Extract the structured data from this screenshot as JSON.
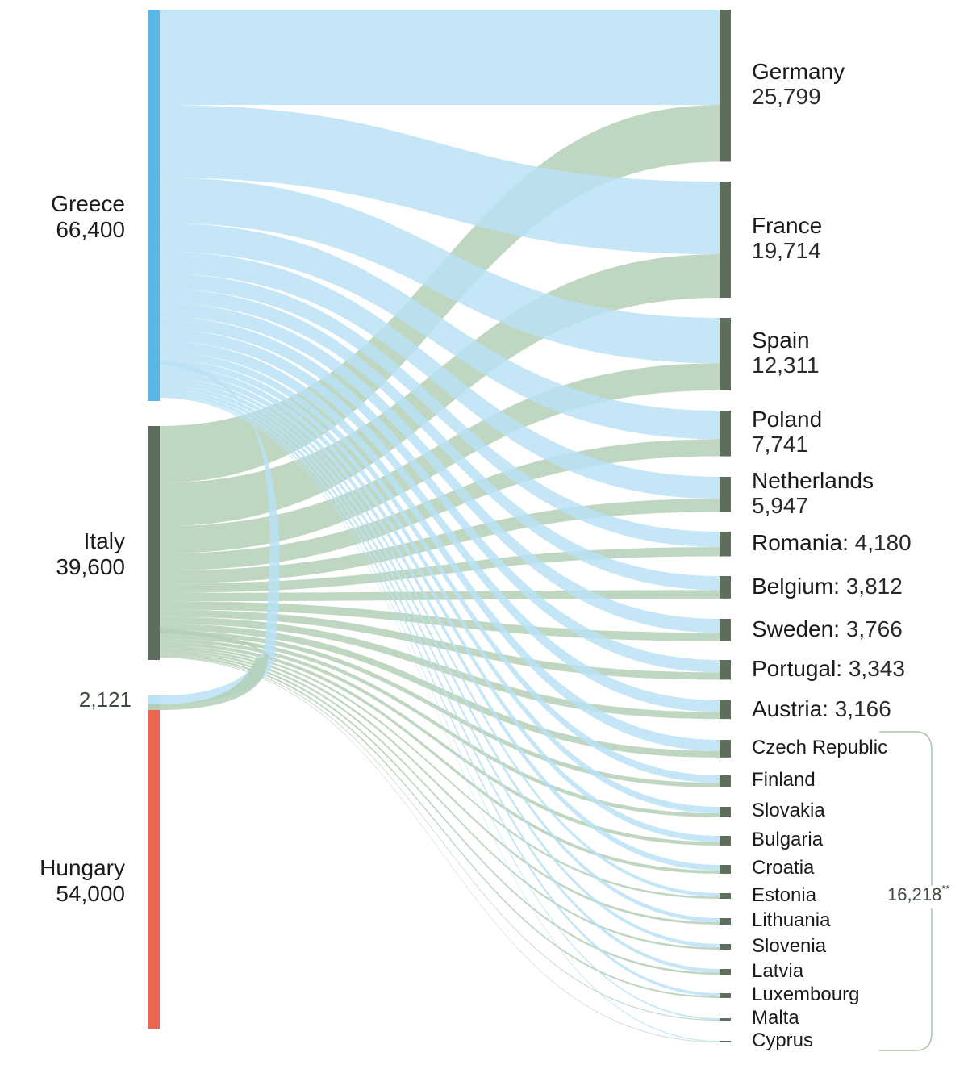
{
  "chart_data": {
    "type": "sankey",
    "title": "",
    "colors": {
      "greece_node": "#57B8E8",
      "italy_node": "#5D6E5D",
      "hungary_node": "#E8674F",
      "target_node": "#5D6E5D",
      "greece_link": "#BAE2F5",
      "italy_link": "#B4CFB6",
      "bracket": "#A9C4AC"
    },
    "sources": [
      {
        "name": "Greece",
        "value": 66400,
        "label": "Greece",
        "value_label": "66,400"
      },
      {
        "name": "Italy",
        "value": 39600,
        "label": "Italy",
        "value_label": "39,600"
      },
      {
        "name": "Hungary",
        "value": 54000,
        "label": "Hungary",
        "value_label": "54,000"
      }
    ],
    "loop": {
      "label": "2,121",
      "value": 2121,
      "note": "flows from Greece and Italy back into the Hungary node",
      "greece_share": 0.6,
      "italy_share": 0.4
    },
    "link_split": {
      "greece_share": 0.626,
      "italy_share": 0.374
    },
    "targets": [
      {
        "name": "Germany",
        "value": 25799,
        "value_label": "25,799",
        "style": "big"
      },
      {
        "name": "France",
        "value": 19714,
        "value_label": "19,714",
        "style": "big"
      },
      {
        "name": "Spain",
        "value": 12311,
        "value_label": "12,311",
        "style": "big"
      },
      {
        "name": "Poland",
        "value": 7741,
        "value_label": "7,741",
        "style": "big"
      },
      {
        "name": "Netherlands",
        "value": 5947,
        "value_label": "5,947",
        "style": "big"
      },
      {
        "name": "Romania",
        "value": 4180,
        "value_label": "4,180",
        "style": "inline"
      },
      {
        "name": "Belgium",
        "value": 3812,
        "value_label": "3,812",
        "style": "inline"
      },
      {
        "name": "Sweden",
        "value": 3766,
        "value_label": "3,766",
        "style": "inline"
      },
      {
        "name": "Portugal",
        "value": 3343,
        "value_label": "3,343",
        "style": "inline"
      },
      {
        "name": "Austria",
        "value": 3166,
        "value_label": "3,166",
        "style": "inline"
      },
      {
        "name": "Czech Republic",
        "value": 3150,
        "estimated": true,
        "style": "small"
      },
      {
        "name": "Finland",
        "value": 2150,
        "estimated": true,
        "style": "small"
      },
      {
        "name": "Slovakia",
        "value": 1870,
        "estimated": true,
        "style": "small"
      },
      {
        "name": "Bulgaria",
        "value": 1720,
        "estimated": true,
        "style": "small"
      },
      {
        "name": "Croatia",
        "value": 1580,
        "estimated": true,
        "style": "small"
      },
      {
        "name": "Estonia",
        "value": 1010,
        "estimated": true,
        "style": "small"
      },
      {
        "name": "Lithuania",
        "value": 1150,
        "estimated": true,
        "style": "small"
      },
      {
        "name": "Slovenia",
        "value": 1010,
        "estimated": true,
        "style": "small"
      },
      {
        "name": "Latvia",
        "value": 1010,
        "estimated": true,
        "style": "small"
      },
      {
        "name": "Luxembourg",
        "value": 860,
        "estimated": true,
        "style": "small"
      },
      {
        "name": "Malta",
        "value": 430,
        "estimated": true,
        "style": "small"
      },
      {
        "name": "Cyprus",
        "value": 280,
        "estimated": true,
        "style": "small"
      }
    ],
    "aggregate": {
      "label": "16,218",
      "suffix": "**",
      "value": 16218,
      "covers": [
        "Czech Republic",
        "Finland",
        "Slovakia",
        "Bulgaria",
        "Croatia",
        "Estonia",
        "Lithuania",
        "Slovenia",
        "Latvia",
        "Luxembourg",
        "Malta",
        "Cyprus"
      ]
    }
  }
}
